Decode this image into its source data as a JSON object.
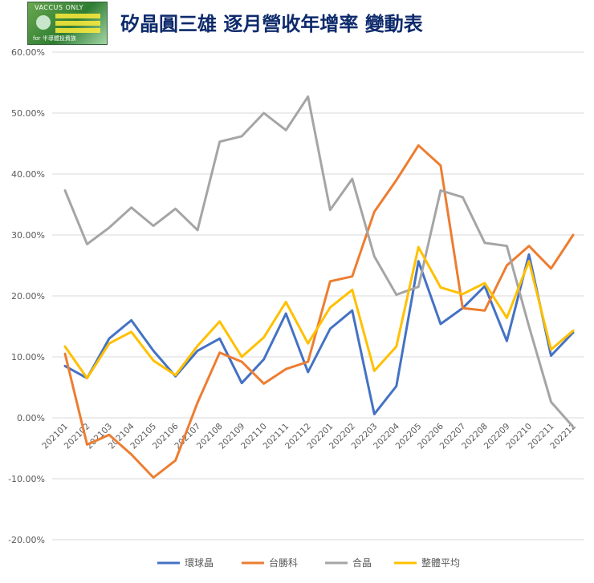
{
  "logo": {
    "text_top": "VACCUS ONLY",
    "text_bottom": "for 半導體投資族"
  },
  "colors": {
    "環球晶": "#4472C4",
    "台勝科": "#ED7D31",
    "合晶": "#A5A5A5",
    "整體平均": "#FFC000"
  },
  "chart_data": {
    "type": "line",
    "title": "矽晶圓三雄 逐月營收年增率 變動表",
    "xlabel": "",
    "ylabel": "",
    "ylim": [
      -20,
      60
    ],
    "y_ticks": [
      60,
      50,
      40,
      30,
      20,
      10,
      0,
      -10,
      -20
    ],
    "y_tick_labels": [
      "60.00%",
      "50.00%",
      "40.00%",
      "30.00%",
      "20.00%",
      "10.00%",
      "0.00%",
      "-10.00%",
      "-20.00%"
    ],
    "grid": "horizontal",
    "legend_position": "bottom",
    "categories": [
      "202101",
      "202102",
      "202103",
      "202104",
      "202105",
      "202106",
      "202107",
      "202108",
      "202109",
      "202110",
      "202111",
      "202112",
      "202201",
      "202202",
      "202203",
      "202204",
      "202205",
      "202206",
      "202207",
      "202208",
      "202209",
      "202210",
      "202211",
      "202212"
    ],
    "series": [
      {
        "name": "環球晶",
        "values": [
          8.5,
          6.5,
          13.0,
          16.0,
          11.0,
          6.8,
          11.0,
          13.0,
          5.7,
          9.6,
          17.1,
          7.5,
          14.6,
          17.6,
          0.6,
          5.2,
          25.7,
          15.4,
          18.0,
          21.6,
          12.6,
          26.8,
          10.2,
          14.0
        ]
      },
      {
        "name": "台勝科",
        "values": [
          10.5,
          -4.4,
          -2.8,
          -6.0,
          -9.8,
          -7.0,
          2.5,
          10.7,
          9.2,
          5.6,
          8.0,
          9.2,
          22.4,
          23.2,
          33.8,
          39.0,
          44.7,
          41.4,
          18.0,
          17.6,
          25.0,
          28.2,
          24.5,
          30.0
        ]
      },
      {
        "name": "合晶",
        "values": [
          37.3,
          28.5,
          31.2,
          34.5,
          31.5,
          34.3,
          30.8,
          45.3,
          46.2,
          50.0,
          47.2,
          52.7,
          34.1,
          39.2,
          26.5,
          20.2,
          21.5,
          37.3,
          36.2,
          28.7,
          28.2,
          15.0,
          2.6,
          -1.5
        ]
      },
      {
        "name": "整體平均",
        "values": [
          11.7,
          6.5,
          12.2,
          14.1,
          9.4,
          7.0,
          11.8,
          15.8,
          10.0,
          13.2,
          19.0,
          12.2,
          18.1,
          21.0,
          7.7,
          11.7,
          28.0,
          21.4,
          20.3,
          22.1,
          16.4,
          25.7,
          11.2,
          14.3
        ]
      }
    ]
  }
}
